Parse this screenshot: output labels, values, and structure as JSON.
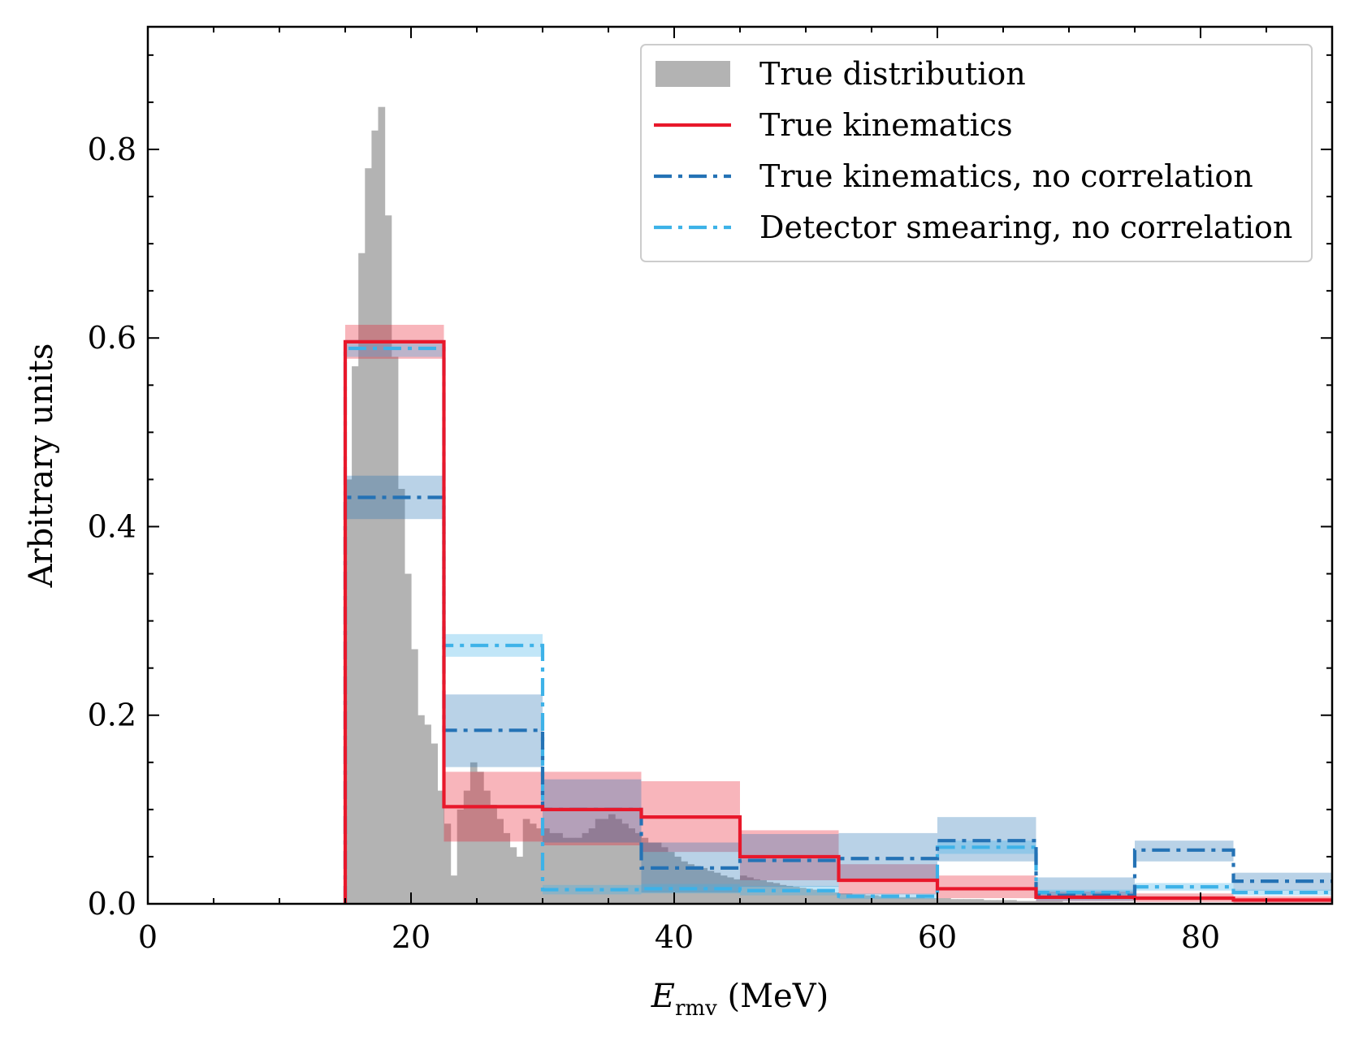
{
  "chart_data": {
    "type": "histogram",
    "title": "",
    "xlabel": {
      "symbol": "E",
      "subscript": "rmv",
      "unit": " (MeV)"
    },
    "ylabel": "Arbitrary units",
    "xlim": [
      0,
      90
    ],
    "ylim": [
      0,
      0.93
    ],
    "xticks": [
      0,
      20,
      40,
      60,
      80
    ],
    "yticks": [
      0.0,
      0.2,
      0.4,
      0.6,
      0.8
    ],
    "xtick_labels": [
      "0",
      "20",
      "40",
      "60",
      "80"
    ],
    "ytick_labels": [
      "0.0",
      "0.2",
      "0.4",
      "0.6",
      "0.8"
    ],
    "grid": false,
    "legend_position": "top-right",
    "true_distribution": {
      "name": "True distribution",
      "color": "#b3b3b3",
      "bin_width": 0.5,
      "bin_start": 15,
      "values": [
        0.45,
        0.57,
        0.69,
        0.78,
        0.82,
        0.845,
        0.73,
        0.58,
        0.44,
        0.35,
        0.27,
        0.2,
        0.19,
        0.17,
        0.12,
        0.085,
        0.03,
        0.1,
        0.12,
        0.15,
        0.14,
        0.12,
        0.105,
        0.09,
        0.075,
        0.06,
        0.05,
        0.09,
        0.085,
        0.08,
        0.08,
        0.075,
        0.075,
        0.07,
        0.07,
        0.07,
        0.075,
        0.08,
        0.09,
        0.09,
        0.095,
        0.09,
        0.085,
        0.08,
        0.075,
        0.07,
        0.065,
        0.065,
        0.06,
        0.055,
        0.05,
        0.045,
        0.042,
        0.04,
        0.038,
        0.035,
        0.033,
        0.03,
        0.028,
        0.026,
        0.03,
        0.028,
        0.026,
        0.025,
        0.023,
        0.022,
        0.02,
        0.019,
        0.018,
        0.017,
        0.016,
        0.015,
        0.014,
        0.013,
        0.012,
        0.011,
        0.011,
        0.01,
        0.01,
        0.009,
        0.009,
        0.008,
        0.008,
        0.008,
        0.007,
        0.007,
        0.007,
        0.007,
        0.006,
        0.006,
        0.006,
        0.006,
        0.005,
        0.005,
        0.005,
        0.005,
        0.005,
        0.004,
        0.004,
        0.004,
        0.004,
        0.004,
        0.003,
        0.003,
        0.003,
        0.003,
        0.003,
        0.003,
        0.003,
        0.002,
        0.002,
        0.002,
        0.002,
        0.002,
        0.002,
        0.002,
        0.002,
        0.002,
        0.002,
        0.002
      ]
    },
    "bin_edges": [
      15,
      22.5,
      30,
      37.5,
      45,
      52.5,
      60,
      67.5,
      75,
      82.5,
      90
    ],
    "series": [
      {
        "name": "True kinematics",
        "color": "#e8182b",
        "style": "solid",
        "values": [
          0.596,
          0.103,
          0.1,
          0.092,
          0.05,
          0.025,
          0.016,
          0.007,
          0.006,
          0.004
        ],
        "err_low": [
          0.578,
          0.066,
          0.062,
          0.055,
          0.025,
          0.01,
          0.006,
          0.003,
          0.002,
          0.001
        ],
        "err_high": [
          0.614,
          0.14,
          0.14,
          0.13,
          0.078,
          0.042,
          0.03,
          0.013,
          0.011,
          0.008
        ]
      },
      {
        "name": "True kinematics, no correlation",
        "color": "#2472b5",
        "style": "dashdot",
        "values": [
          0.431,
          0.184,
          0.1,
          0.038,
          0.046,
          0.048,
          0.067,
          0.009,
          0.057,
          0.024
        ],
        "err_low": [
          0.408,
          0.145,
          0.065,
          0.012,
          0.018,
          0.024,
          0.045,
          0.003,
          0.045,
          0.014
        ],
        "err_high": [
          0.454,
          0.222,
          0.132,
          0.065,
          0.074,
          0.075,
          0.092,
          0.028,
          0.067,
          0.033
        ]
      },
      {
        "name": "Detector smearing, no correlation",
        "color": "#3db2e8",
        "style": "dashdot",
        "values": [
          0.589,
          0.274,
          0.015,
          0.016,
          0.014,
          0.008,
          0.06,
          0.012,
          0.018,
          0.012
        ],
        "err_low": [
          0.58,
          0.262,
          0.01,
          0.011,
          0.009,
          0.005,
          0.053,
          0.009,
          0.014,
          0.009
        ],
        "err_high": [
          0.598,
          0.286,
          0.02,
          0.021,
          0.019,
          0.011,
          0.067,
          0.015,
          0.022,
          0.015
        ]
      }
    ],
    "legend": [
      {
        "label": "True distribution",
        "kind": "patch",
        "color": "#b3b3b3"
      },
      {
        "label": "True kinematics",
        "kind": "line",
        "color": "#e8182b",
        "style": "solid"
      },
      {
        "label": "True kinematics, no correlation",
        "kind": "line",
        "color": "#2472b5",
        "style": "dashdot"
      },
      {
        "label": "Detector smearing, no correlation",
        "kind": "line",
        "color": "#3db2e8",
        "style": "dashdot"
      }
    ]
  }
}
